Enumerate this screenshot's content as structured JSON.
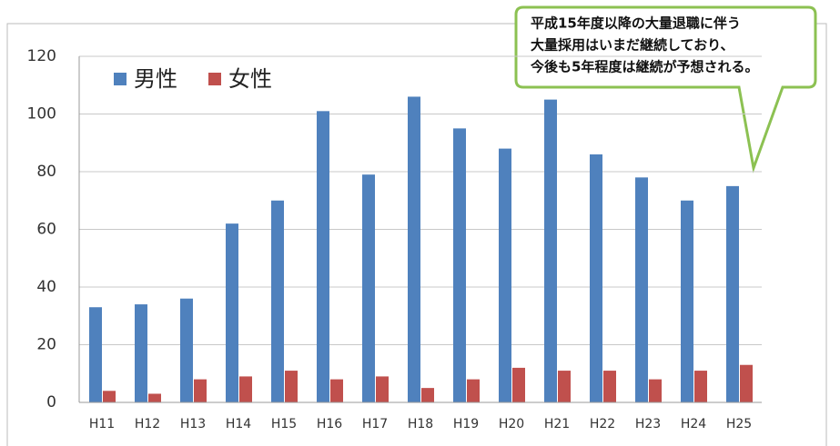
{
  "chart_data": {
    "type": "bar",
    "categories": [
      "H11",
      "H12",
      "H13",
      "H14",
      "H15",
      "H16",
      "H17",
      "H18",
      "H19",
      "H20",
      "H21",
      "H22",
      "H23",
      "H24",
      "H25"
    ],
    "series": [
      {
        "name": "男性",
        "color": "#4f81bd",
        "values": [
          33,
          34,
          36,
          62,
          70,
          101,
          79,
          106,
          95,
          88,
          105,
          86,
          78,
          70,
          75
        ]
      },
      {
        "name": "女性",
        "color": "#c0504d",
        "values": [
          4,
          3,
          8,
          9,
          11,
          8,
          9,
          5,
          8,
          12,
          11,
          11,
          8,
          11,
          13
        ]
      }
    ],
    "ylim": [
      0,
      120
    ],
    "yticks": [
      0,
      20,
      40,
      60,
      80,
      100,
      120
    ],
    "grid": true,
    "annotation": [
      "平成15年度以降の大量退職に伴う",
      "大量採用はいまだ継続しており、",
      "今後も5年程度は継続が予想される。"
    ]
  }
}
